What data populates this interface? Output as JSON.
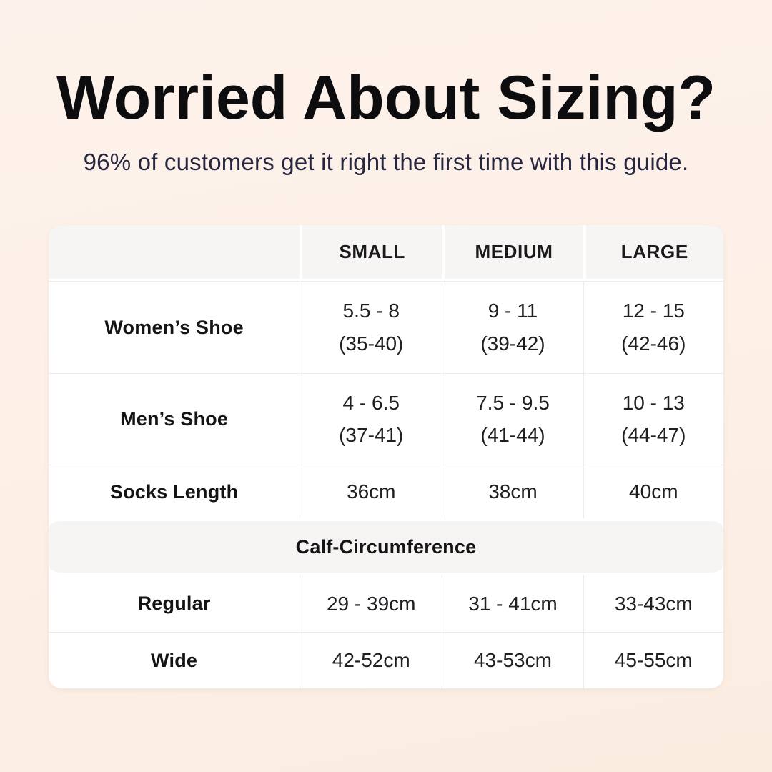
{
  "header": {
    "title": "Worried About Sizing?",
    "subtitle": "96% of customers get it right the first time with this guide."
  },
  "size_table": {
    "column_headers": [
      "SMALL",
      "MEDIUM",
      "LARGE"
    ],
    "shoe_rows": [
      {
        "label": "Women’s Shoe",
        "values": [
          "5.5 - 8",
          "9 - 11",
          "12 - 15"
        ],
        "sub_values": [
          "(35-40)",
          "(39-42)",
          "(42-46)"
        ]
      },
      {
        "label": "Men’s Shoe",
        "values": [
          "4 - 6.5",
          "7.5 - 9.5",
          "10 - 13"
        ],
        "sub_values": [
          "(37-41)",
          "(41-44)",
          "(44-47)"
        ]
      }
    ],
    "socks_row": {
      "label": "Socks Length",
      "values": [
        "36cm",
        "38cm",
        "40cm"
      ]
    },
    "section_header": "Calf-Circumference",
    "calf_rows": [
      {
        "label": "Regular",
        "values": [
          "29 - 39cm",
          "31 - 41cm",
          "33-43cm"
        ]
      },
      {
        "label": "Wide",
        "values": [
          "42-52cm",
          "43-53cm",
          "45-55cm"
        ]
      }
    ]
  },
  "colors": {
    "background": "#fcf0e8",
    "title_text": "#0d0d10",
    "subtitle_text": "#26263f",
    "table_background": "#ffffff",
    "band_background": "#f6f5f3",
    "divider": "#ececec",
    "table_text": "#202024"
  }
}
